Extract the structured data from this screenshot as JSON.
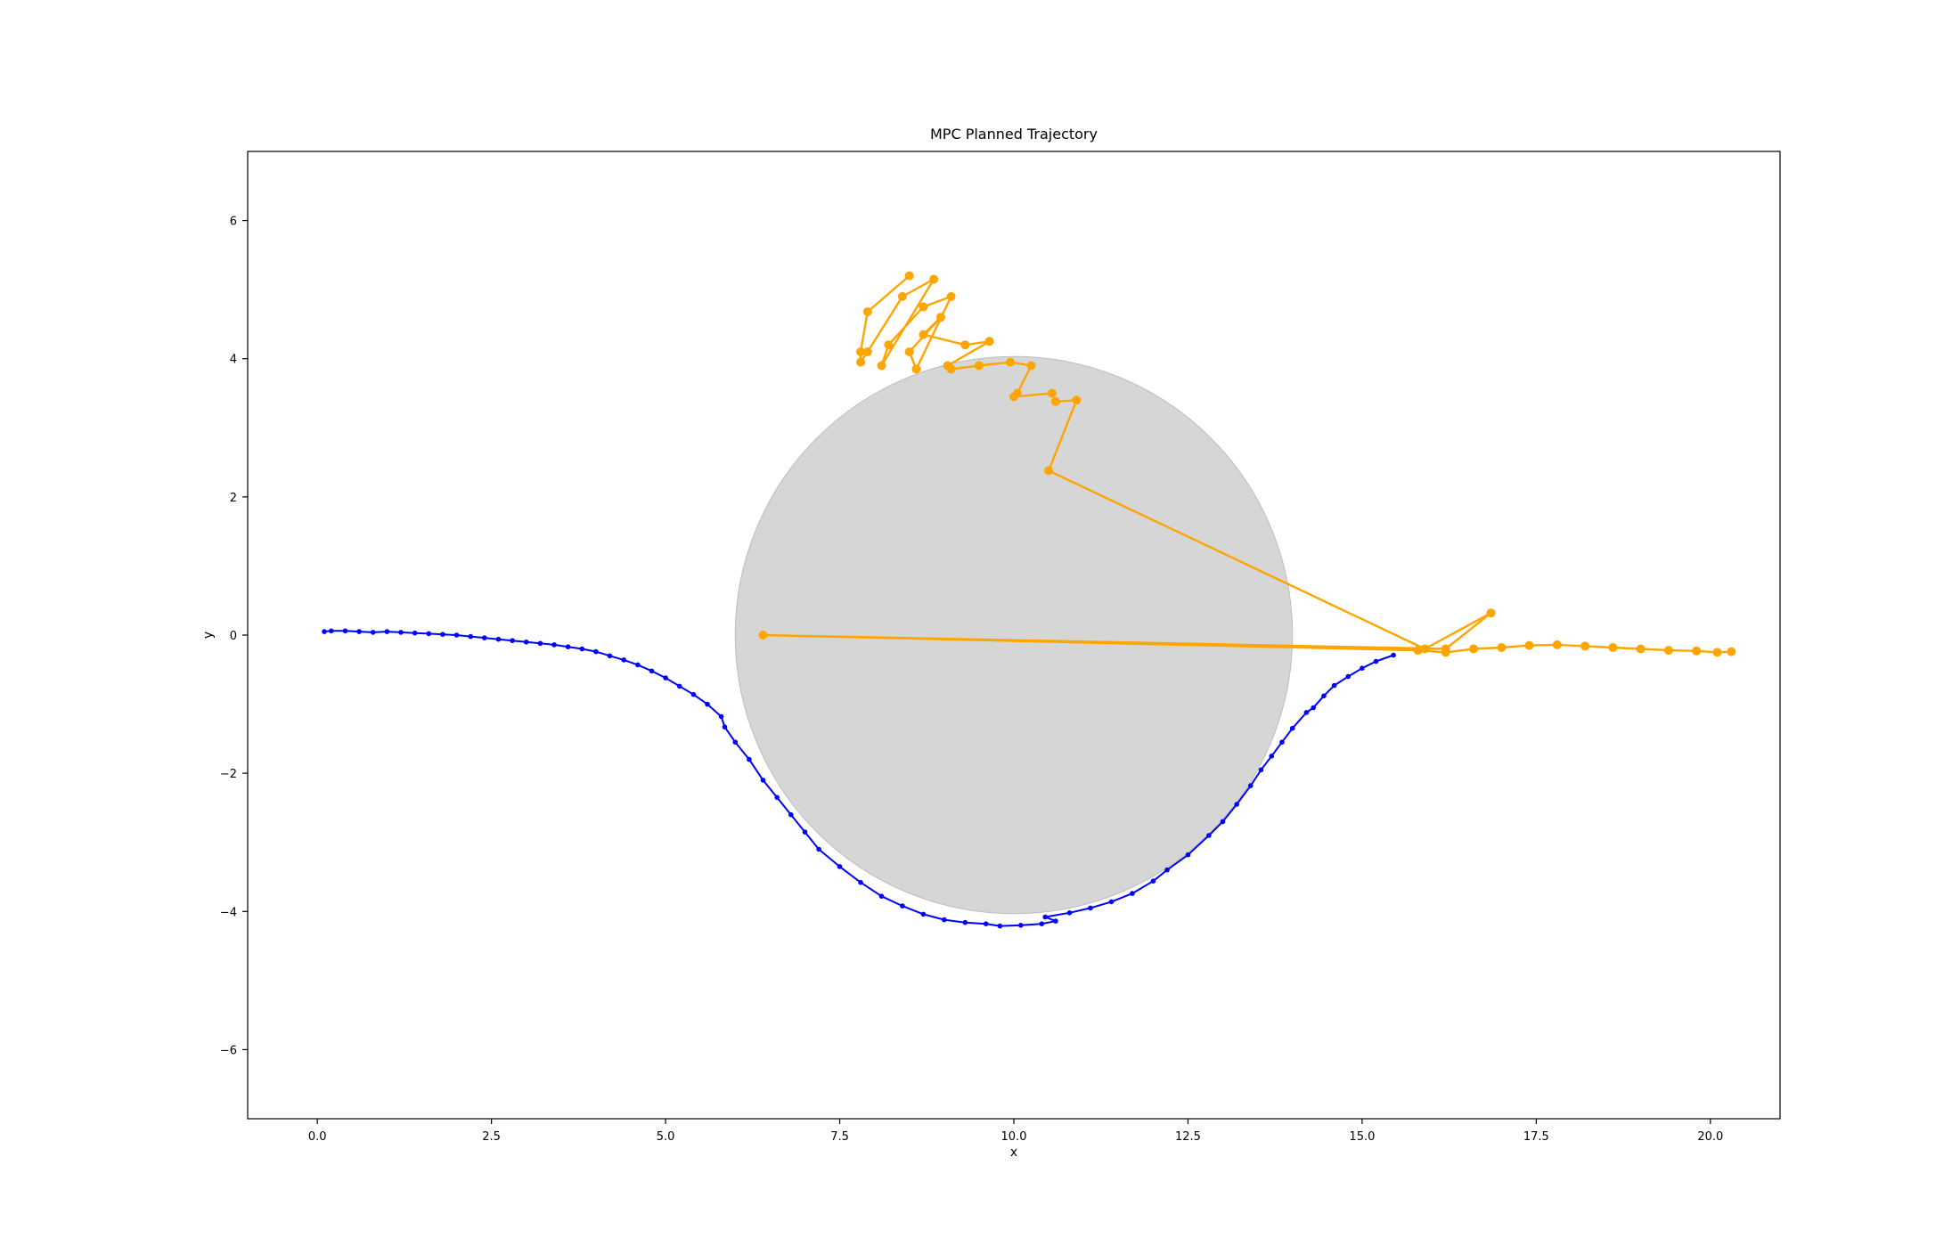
{
  "chart_data": {
    "type": "line",
    "title": "MPC Planned Trajectory",
    "xlabel": "x",
    "ylabel": "y",
    "xlim": [
      -1.0,
      21.0
    ],
    "ylim": [
      -7.0,
      7.0
    ],
    "xticks": [
      0.0,
      2.5,
      5.0,
      7.5,
      10.0,
      12.5,
      15.0,
      17.5,
      20.0
    ],
    "xtick_labels": [
      "0.0",
      "2.5",
      "5.0",
      "7.5",
      "10.0",
      "12.5",
      "15.0",
      "17.5",
      "20.0"
    ],
    "yticks": [
      -6,
      -4,
      -2,
      0,
      2,
      4,
      6
    ],
    "ytick_labels": [
      "−6",
      "−4",
      "−2",
      "0",
      "2",
      "4",
      "6"
    ],
    "grid": false,
    "obstacle": {
      "shape": "circle",
      "center": [
        10.0,
        0.0
      ],
      "radius": 4.0,
      "color": "#d6d6d6"
    },
    "series": [
      {
        "color": "#0000ff",
        "marker": "small-dot",
        "points": [
          [
            0.1,
            0.05
          ],
          [
            0.2,
            0.06
          ],
          [
            0.4,
            0.06
          ],
          [
            0.6,
            0.05
          ],
          [
            0.8,
            0.04
          ],
          [
            1.0,
            0.05
          ],
          [
            1.2,
            0.04
          ],
          [
            1.4,
            0.03
          ],
          [
            1.6,
            0.02
          ],
          [
            1.8,
            0.01
          ],
          [
            2.0,
            0.0
          ],
          [
            2.2,
            -0.02
          ],
          [
            2.4,
            -0.04
          ],
          [
            2.6,
            -0.06
          ],
          [
            2.8,
            -0.08
          ],
          [
            3.0,
            -0.1
          ],
          [
            3.2,
            -0.12
          ],
          [
            3.4,
            -0.14
          ],
          [
            3.6,
            -0.17
          ],
          [
            3.8,
            -0.2
          ],
          [
            4.0,
            -0.24
          ],
          [
            4.2,
            -0.3
          ],
          [
            4.4,
            -0.36
          ],
          [
            4.6,
            -0.43
          ],
          [
            4.8,
            -0.52
          ],
          [
            5.0,
            -0.62
          ],
          [
            5.2,
            -0.74
          ],
          [
            5.4,
            -0.86
          ],
          [
            5.6,
            -1.0
          ],
          [
            5.8,
            -1.18
          ],
          [
            5.85,
            -1.33
          ],
          [
            6.0,
            -1.55
          ],
          [
            6.2,
            -1.8
          ],
          [
            6.4,
            -2.1
          ],
          [
            6.6,
            -2.35
          ],
          [
            6.8,
            -2.6
          ],
          [
            7.0,
            -2.85
          ],
          [
            7.2,
            -3.1
          ],
          [
            7.5,
            -3.35
          ],
          [
            7.8,
            -3.58
          ],
          [
            8.1,
            -3.78
          ],
          [
            8.4,
            -3.92
          ],
          [
            8.7,
            -4.04
          ],
          [
            9.0,
            -4.12
          ],
          [
            9.3,
            -4.16
          ],
          [
            9.6,
            -4.18
          ],
          [
            9.8,
            -4.21
          ],
          [
            10.1,
            -4.2
          ],
          [
            10.4,
            -4.18
          ],
          [
            10.6,
            -4.14
          ],
          [
            10.45,
            -4.08
          ],
          [
            10.8,
            -4.02
          ],
          [
            11.1,
            -3.95
          ],
          [
            11.4,
            -3.86
          ],
          [
            11.7,
            -3.74
          ],
          [
            12.0,
            -3.56
          ],
          [
            12.2,
            -3.4
          ],
          [
            12.5,
            -3.18
          ],
          [
            12.8,
            -2.9
          ],
          [
            13.0,
            -2.7
          ],
          [
            13.2,
            -2.45
          ],
          [
            13.4,
            -2.18
          ],
          [
            13.55,
            -1.95
          ],
          [
            13.7,
            -1.75
          ],
          [
            13.85,
            -1.55
          ],
          [
            14.0,
            -1.35
          ],
          [
            14.2,
            -1.12
          ],
          [
            14.3,
            -1.05
          ],
          [
            14.45,
            -0.88
          ],
          [
            14.6,
            -0.73
          ],
          [
            14.8,
            -0.6
          ],
          [
            15.0,
            -0.48
          ],
          [
            15.2,
            -0.38
          ],
          [
            15.45,
            -0.29
          ]
        ]
      },
      {
        "color": "#ffa500",
        "marker": "large-dot",
        "points": [
          [
            8.5,
            5.2
          ],
          [
            7.9,
            4.68
          ],
          [
            7.8,
            4.1
          ],
          [
            7.8,
            3.95
          ],
          [
            7.9,
            4.1
          ],
          [
            8.4,
            4.9
          ],
          [
            8.85,
            5.15
          ],
          [
            8.1,
            3.9
          ],
          [
            8.2,
            4.2
          ],
          [
            8.7,
            4.75
          ],
          [
            9.1,
            4.9
          ],
          [
            8.6,
            3.85
          ],
          [
            8.5,
            4.1
          ],
          [
            8.95,
            4.6
          ],
          [
            8.7,
            4.35
          ],
          [
            9.3,
            4.2
          ],
          [
            9.65,
            4.25
          ],
          [
            9.05,
            3.9
          ],
          [
            9.1,
            3.85
          ],
          [
            9.5,
            3.9
          ],
          [
            9.95,
            3.95
          ],
          [
            10.25,
            3.9
          ],
          [
            10.05,
            3.5
          ],
          [
            10.0,
            3.45
          ],
          [
            10.55,
            3.5
          ],
          [
            10.6,
            3.38
          ],
          [
            10.9,
            3.4
          ],
          [
            10.5,
            2.38
          ],
          [
            15.9,
            -0.2
          ],
          [
            16.85,
            0.32
          ],
          [
            16.2,
            -0.2
          ],
          [
            6.4,
            0.0
          ],
          [
            15.8,
            -0.22
          ],
          [
            16.2,
            -0.25
          ],
          [
            16.6,
            -0.2
          ],
          [
            17.0,
            -0.18
          ],
          [
            17.4,
            -0.15
          ],
          [
            17.8,
            -0.14
          ],
          [
            18.2,
            -0.16
          ],
          [
            18.6,
            -0.18
          ],
          [
            19.0,
            -0.2
          ],
          [
            19.4,
            -0.22
          ],
          [
            19.8,
            -0.23
          ],
          [
            20.1,
            -0.25
          ],
          [
            20.3,
            -0.24
          ]
        ]
      }
    ]
  }
}
